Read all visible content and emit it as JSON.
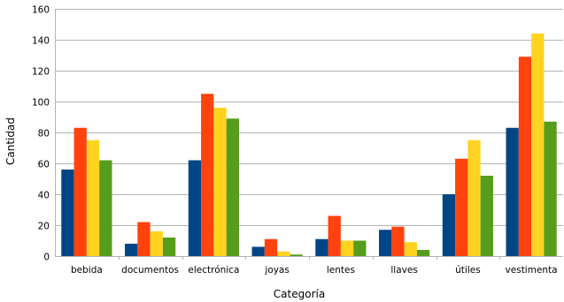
{
  "chart_data": {
    "type": "bar",
    "xlabel": "Categoría",
    "ylabel": "Cantidad",
    "ylim": [
      0,
      160
    ],
    "yticks": [
      0,
      20,
      40,
      60,
      80,
      100,
      120,
      140,
      160
    ],
    "grid": true,
    "legend": "none",
    "categories": [
      "bebida",
      "documentos",
      "electrónica",
      "joyas",
      "lentes",
      "llaves",
      "útiles",
      "vestimenta"
    ],
    "series": [
      {
        "color": "#004586",
        "values": [
          56,
          8,
          62,
          6,
          11,
          17,
          40,
          83
        ]
      },
      {
        "color": "#ff420e",
        "values": [
          83,
          22,
          105,
          11,
          26,
          19,
          63,
          129
        ]
      },
      {
        "color": "#ffd320",
        "values": [
          75,
          16,
          96,
          3,
          10,
          9,
          75,
          144
        ]
      },
      {
        "color": "#579d1c",
        "values": [
          62,
          12,
          89,
          1,
          10,
          4,
          52,
          87
        ]
      }
    ]
  }
}
